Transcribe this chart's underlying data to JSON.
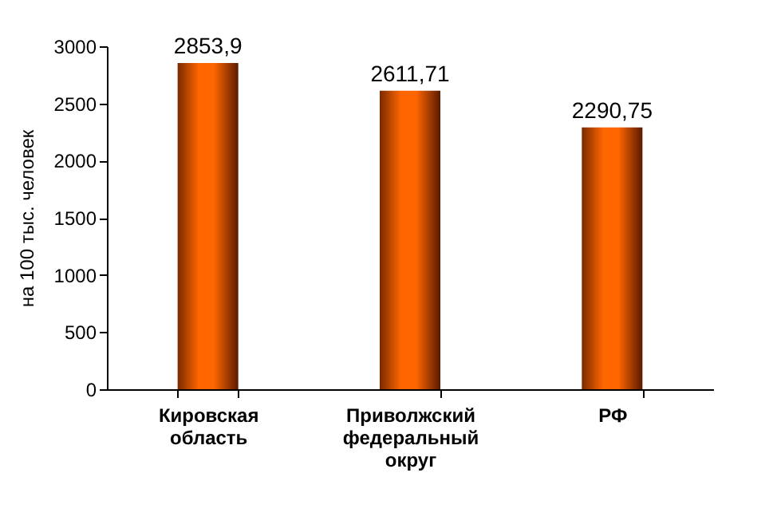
{
  "chart_data": {
    "type": "bar",
    "ylabel": "на 100 тыс. человек",
    "categories": [
      "Кировская область",
      "Приволжский федеральный округ",
      "РФ"
    ],
    "values": [
      2853.9,
      2611.71,
      2290.75
    ],
    "value_labels": [
      "2853,9",
      "2611,71",
      "2290,75"
    ],
    "color": "#ff6600",
    "ylim": [
      0,
      3000
    ],
    "yticks": [
      0,
      500,
      1000,
      1500,
      2000,
      2500,
      3000
    ],
    "grid": false
  }
}
